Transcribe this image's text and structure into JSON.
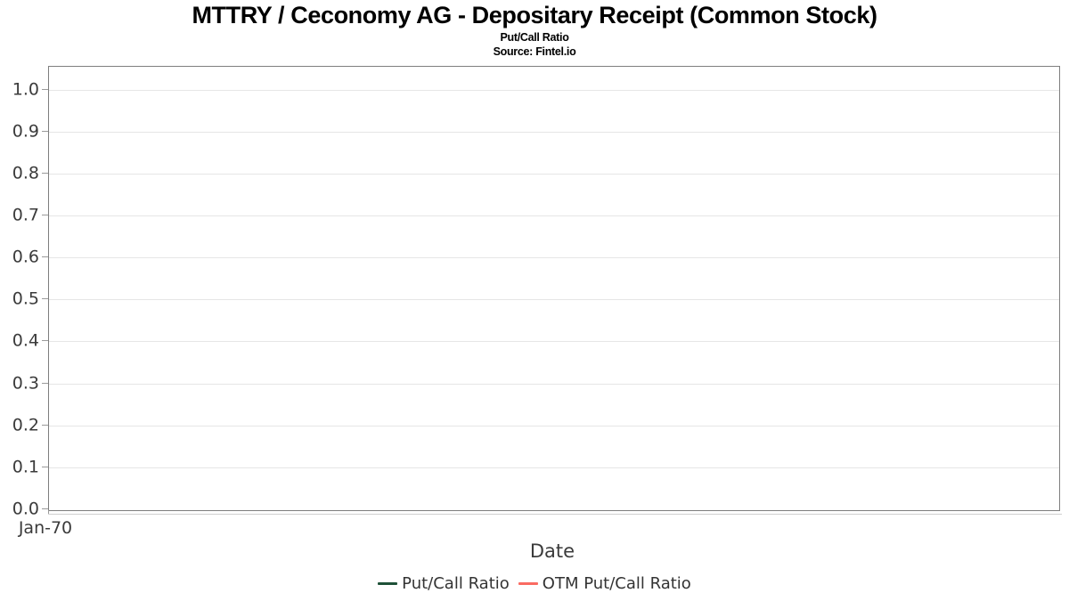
{
  "header": {
    "title": "MTTRY / Ceconomy AG - Depositary Receipt (Common Stock)",
    "subtitle": "Put/Call Ratio",
    "source": "Source: Fintel.io"
  },
  "chart_data": {
    "type": "line",
    "title": "MTTRY / Ceconomy AG - Depositary Receipt (Common Stock)",
    "subtitle": "Put/Call Ratio",
    "source": "Source: Fintel.io",
    "xlabel": "Date",
    "ylabel": "",
    "x_tick_labels": [
      "Jan-70"
    ],
    "y_tick_labels": [
      "0.0",
      "0.1",
      "0.2",
      "0.3",
      "0.4",
      "0.5",
      "0.6",
      "0.7",
      "0.8",
      "0.9",
      "1.0"
    ],
    "ylim": [
      0,
      1.06
    ],
    "grid": "horizontal-only",
    "legend_position": "bottom",
    "series": [
      {
        "name": "Put/Call Ratio",
        "color": "#1e5138",
        "x": [],
        "values": []
      },
      {
        "name": "OTM Put/Call Ratio",
        "color": "#fa6b62",
        "x": [],
        "values": []
      }
    ]
  }
}
